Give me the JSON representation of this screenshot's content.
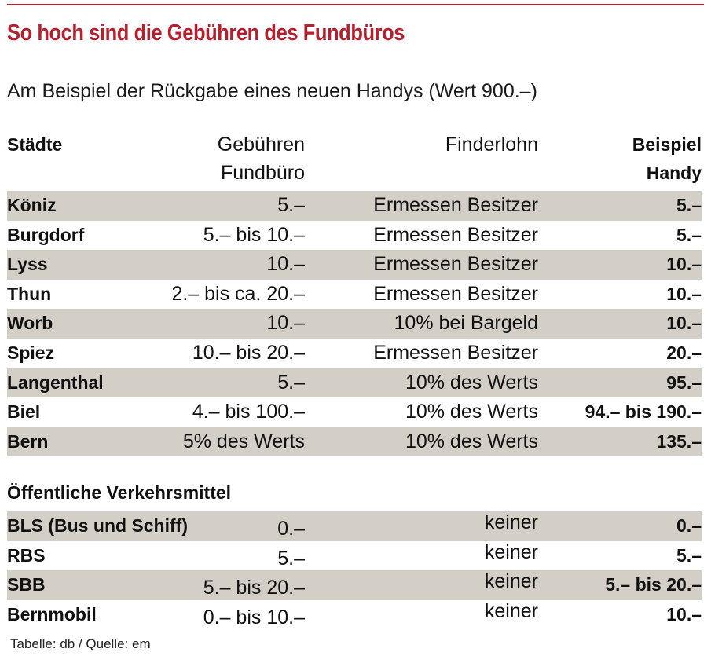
{
  "title": "So hoch sind die Gebühren des Fundbüros",
  "subtitle": "Am Beispiel der Rückgabe eines neuen Handys (Wert 900.–)",
  "header": {
    "city": "Städte",
    "fee_line1": "Gebühren",
    "fee_line2": "Fundbüro",
    "finder": "Finderlohn",
    "example_line1": "Beispiel",
    "example_line2": "Handy"
  },
  "cities": [
    {
      "city": "Köniz",
      "fee": "5.–",
      "finder": "Ermessen Besitzer",
      "example": "5.–"
    },
    {
      "city": "Burgdorf",
      "fee": "5.– bis 10.–",
      "finder": "Ermessen Besitzer",
      "example": "5.–"
    },
    {
      "city": "Lyss",
      "fee": "10.–",
      "finder": "Ermessen Besitzer",
      "example": "10.–"
    },
    {
      "city": "Thun",
      "fee": "2.– bis ca. 20.–",
      "finder": "Ermessen Besitzer",
      "example": "10.–"
    },
    {
      "city": "Worb",
      "fee": "10.–",
      "finder": "10% bei Bargeld",
      "example": "10.–"
    },
    {
      "city": "Spiez",
      "fee": "10.– bis 20.–",
      "finder": "Ermessen Besitzer",
      "example": "20.–"
    },
    {
      "city": "Langenthal",
      "fee": "5.–",
      "finder": "10% des Werts",
      "example": "95.–"
    },
    {
      "city": "Biel",
      "fee": "4.– bis 100.–",
      "finder": "10% des Werts",
      "example": "94.– bis 190.–"
    },
    {
      "city": "Bern",
      "fee": "5% des Werts",
      "finder": "10% des Werts",
      "example": "135.–"
    }
  ],
  "transport_title": "Öffentliche Verkehrsmittel",
  "transport": [
    {
      "city": "BLS (Bus und Schiff)",
      "fee": "0.–",
      "finder": "keiner",
      "example": "0.–"
    },
    {
      "city": "RBS",
      "fee": "5.–",
      "finder": "keiner",
      "example": "5.–"
    },
    {
      "city": "SBB",
      "fee": "5.– bis 20.–",
      "finder": "keiner",
      "example": "5.– bis 20.–"
    },
    {
      "city": "Bernmobil",
      "fee": "0.– bis 10.–",
      "finder": "keiner",
      "example": "10.–"
    }
  ],
  "source": "Tabelle: db / Quelle: em",
  "colors": {
    "accent": "#b5202e",
    "row_shade": "#d4cfc6"
  }
}
